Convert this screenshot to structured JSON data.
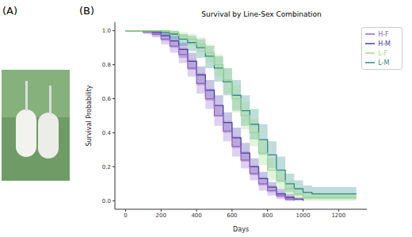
{
  "panels": [
    "(A)",
    "(B)"
  ],
  "chart_data": {
    "type": "line",
    "title": "Survival by Line-Sex Combination",
    "x_label": "Days",
    "y_label": "Survival Probability",
    "line_style": "step",
    "grid": false,
    "legend": "upper right",
    "xlim": [
      -60,
      1360
    ],
    "ylim": [
      -0.05,
      1.05
    ],
    "xticks": [
      0,
      200,
      400,
      600,
      800,
      1000,
      1200
    ],
    "yticks": [
      {
        "value": 0,
        "label": "0.0"
      },
      {
        "value": 0.2,
        "label": "0.2"
      },
      {
        "value": 0.4,
        "label": "0.4"
      },
      {
        "value": 0.6,
        "label": "0.6"
      },
      {
        "value": 0.8,
        "label": "0.8"
      },
      {
        "value": 1,
        "label": "1.0"
      }
    ],
    "x": [
      0,
      50,
      100,
      150,
      200,
      250,
      300,
      350,
      400,
      450,
      500,
      550,
      600,
      650,
      700,
      750,
      800,
      850,
      900,
      950,
      1000,
      1050,
      1100,
      1150,
      1200,
      1250,
      1300
    ],
    "series": [
      {
        "name": "H-M",
        "color": "#4a3f9f",
        "values": [
          1,
          1,
          1,
          0.99,
          0.97,
          0.94,
          0.89,
          0.82,
          0.74,
          0.65,
          0.56,
          0.46,
          0.37,
          0.28,
          0.2,
          0.13,
          0.08,
          0.04,
          0.02,
          0.01,
          0,
          null,
          null,
          null,
          null,
          null,
          null
        ],
        "lower": [
          1,
          1,
          0.99,
          0.97,
          0.94,
          0.9,
          0.84,
          0.77,
          0.68,
          0.59,
          0.5,
          0.4,
          0.31,
          0.23,
          0.15,
          0.09,
          0.05,
          0.02,
          0,
          0,
          0,
          null,
          null,
          null,
          null,
          null,
          null
        ],
        "upper": [
          1,
          1,
          1,
          1,
          0.99,
          0.97,
          0.93,
          0.87,
          0.79,
          0.71,
          0.62,
          0.52,
          0.43,
          0.34,
          0.25,
          0.17,
          0.11,
          0.07,
          0.04,
          0.02,
          0.01,
          null,
          null,
          null,
          null,
          null,
          null
        ]
      },
      {
        "name": "H-F",
        "color": "#9565c9",
        "values": [
          1,
          1,
          0.99,
          0.98,
          0.95,
          0.91,
          0.86,
          0.78,
          0.69,
          0.6,
          0.5,
          0.41,
          0.32,
          0.24,
          0.16,
          0.1,
          0.06,
          0.03,
          0.01,
          0,
          null,
          null,
          null,
          null,
          null,
          null,
          null
        ],
        "lower": [
          1,
          1,
          0.98,
          0.96,
          0.92,
          0.87,
          0.81,
          0.73,
          0.63,
          0.54,
          0.44,
          0.35,
          0.26,
          0.19,
          0.12,
          0.06,
          0.03,
          0.01,
          0,
          0,
          null,
          null,
          null,
          null,
          null,
          null,
          null
        ],
        "upper": [
          1,
          1,
          1,
          1,
          0.98,
          0.95,
          0.9,
          0.83,
          0.75,
          0.66,
          0.56,
          0.47,
          0.38,
          0.29,
          0.21,
          0.14,
          0.09,
          0.05,
          0.03,
          0.01,
          null,
          null,
          null,
          null,
          null,
          null,
          null
        ]
      },
      {
        "name": "L-M",
        "color": "#2e8a88",
        "values": [
          1,
          1,
          1,
          1,
          0.99,
          0.98,
          0.95,
          0.93,
          0.9,
          0.85,
          0.78,
          0.7,
          0.62,
          0.53,
          0.45,
          0.36,
          0.27,
          0.18,
          0.1,
          0.07,
          0.05,
          0.04,
          0.04,
          0.04,
          0.04,
          0.04,
          0.04
        ],
        "lower": [
          1,
          1,
          1,
          0.99,
          0.97,
          0.95,
          0.91,
          0.88,
          0.84,
          0.78,
          0.7,
          0.62,
          0.53,
          0.44,
          0.36,
          0.27,
          0.19,
          0.11,
          0.05,
          0.03,
          0.01,
          0.01,
          0.01,
          0.01,
          0.01,
          0.01,
          0.01
        ],
        "upper": [
          1,
          1,
          1,
          1,
          1,
          1,
          0.98,
          0.97,
          0.95,
          0.91,
          0.85,
          0.78,
          0.71,
          0.62,
          0.54,
          0.45,
          0.35,
          0.26,
          0.16,
          0.12,
          0.09,
          0.08,
          0.08,
          0.08,
          0.08,
          0.08,
          0.08
        ]
      },
      {
        "name": "L-F",
        "color": "#9bd98a",
        "values": [
          1,
          1,
          1,
          1,
          1,
          0.99,
          0.97,
          0.95,
          0.92,
          0.87,
          0.8,
          0.71,
          0.6,
          0.5,
          0.4,
          0.28,
          0.18,
          0.12,
          0.07,
          0.04,
          0.02,
          0.02,
          0.02,
          0.02,
          0.02,
          0.02,
          0.02
        ],
        "lower": [
          1,
          1,
          1,
          1,
          0.99,
          0.97,
          0.94,
          0.91,
          0.87,
          0.81,
          0.73,
          0.63,
          0.52,
          0.42,
          0.32,
          0.21,
          0.12,
          0.07,
          0.03,
          0.01,
          0,
          0,
          0,
          0,
          0,
          0,
          0
        ],
        "upper": [
          1,
          1,
          1,
          1,
          1,
          1,
          0.99,
          0.98,
          0.96,
          0.92,
          0.86,
          0.78,
          0.68,
          0.58,
          0.48,
          0.36,
          0.25,
          0.18,
          0.12,
          0.08,
          0.05,
          0.05,
          0.05,
          0.05,
          0.05,
          0.05,
          0.05
        ]
      }
    ]
  }
}
